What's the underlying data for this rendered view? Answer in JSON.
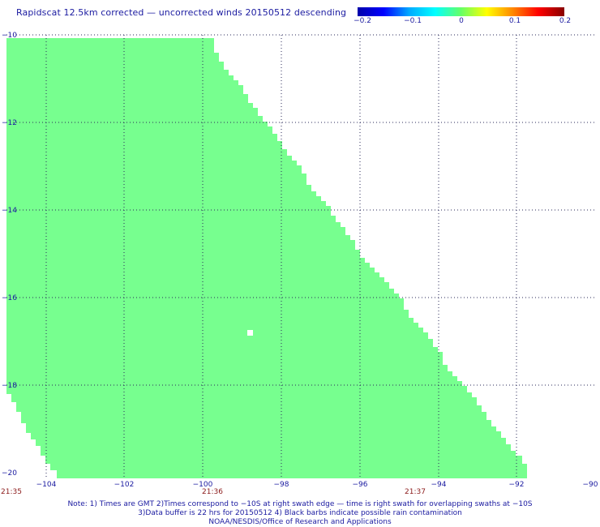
{
  "title": "Rapidscat 12.5km corrected — uncorrected winds 20150512 descending",
  "colorbar": {
    "ticks": [
      "−0.2",
      "−0.1",
      "0",
      "0.1",
      "0.2"
    ],
    "colors": [
      "#0000aa",
      "#0000ff",
      "#00aaff",
      "#00ffff",
      "#66ff66",
      "#ffff00",
      "#ff8800",
      "#ff0000",
      "#880000"
    ]
  },
  "map": {
    "land_color": "#77ff8f",
    "grid_color": "#2a2a5a",
    "lon_range": [
      -105,
      -90
    ],
    "lat_range": [
      -20,
      -10
    ]
  },
  "lat_labels": [
    "−10",
    "−12",
    "−14",
    "−16",
    "−18",
    "−20"
  ],
  "lon_labels": [
    "−104",
    "−102",
    "−100",
    "−98",
    "−96",
    "−94",
    "−92",
    "−90"
  ],
  "time_labels": [
    "21:35",
    "21:36",
    "21:37"
  ],
  "notes": [
    "Note: 1) Times are GMT 2)Times correspond to −10S at right swath edge — time is right swath for overlapping swaths at −10S",
    "3)Data buffer is 22 hrs for 20150512 4) Black barbs indicate possible rain contamination",
    "NOAA/NESDIS/Office of Research and Applications"
  ]
}
